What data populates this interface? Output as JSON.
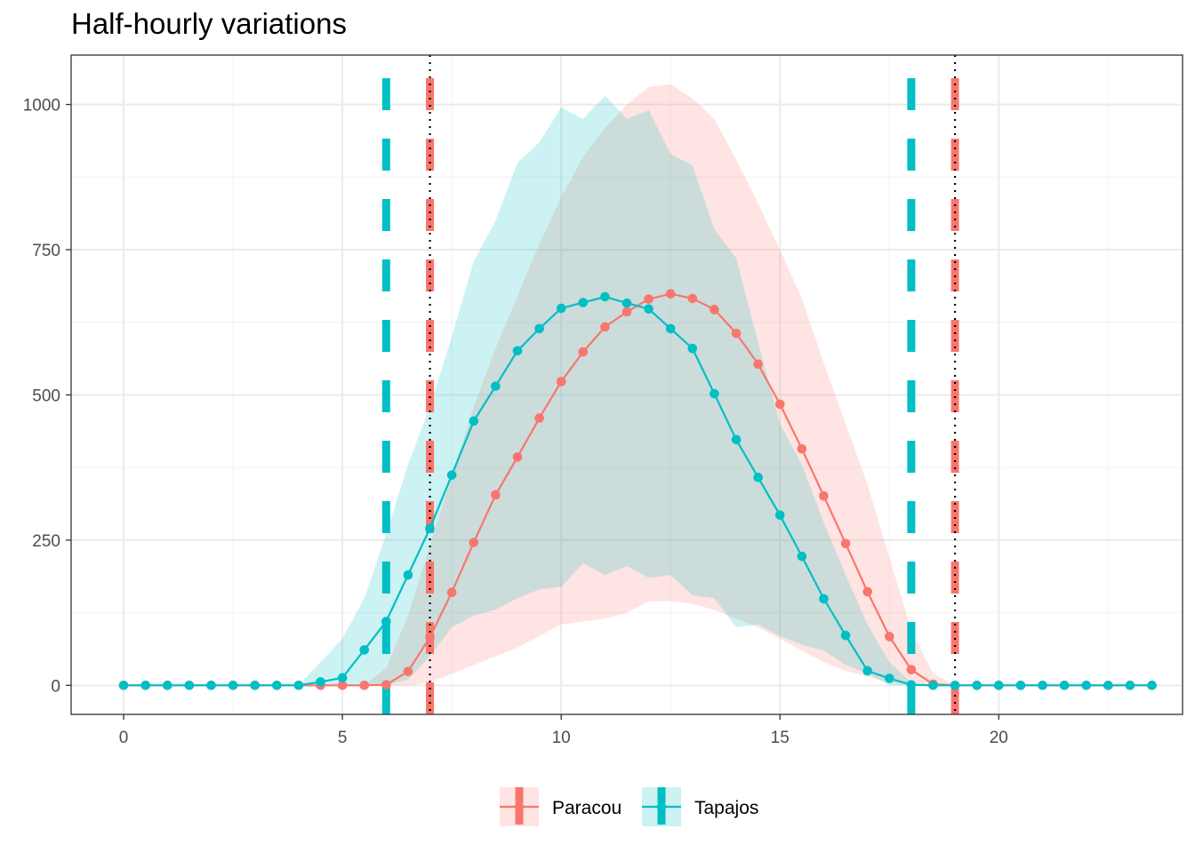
{
  "chart_data": {
    "type": "line",
    "title": "Half-hourly variations",
    "xlabel": "",
    "ylabel": "",
    "xlim": [
      -1.2,
      24.2
    ],
    "ylim": [
      -50,
      1085
    ],
    "x_ticks": [
      0,
      5,
      10,
      15,
      20
    ],
    "x_tick_labels": [
      "0",
      "5",
      "10",
      "15",
      "20"
    ],
    "y_ticks": [
      0,
      250,
      500,
      750,
      1000
    ],
    "y_tick_labels": [
      "0",
      "250",
      "500",
      "750",
      "1000"
    ],
    "grid": true,
    "legend_position": "bottom",
    "series": [
      {
        "name": "Paracou",
        "color": "#F8766D",
        "x": [
          0,
          0.5,
          1,
          1.5,
          2,
          2.5,
          3,
          3.5,
          4,
          4.5,
          5,
          5.5,
          6,
          6.5,
          7,
          7.5,
          8,
          8.5,
          9,
          9.5,
          10,
          10.5,
          11,
          11.5,
          12,
          12.5,
          13,
          13.5,
          14,
          14.5,
          15,
          15.5,
          16,
          16.5,
          17,
          17.5,
          18,
          18.5,
          19,
          19.5,
          20,
          20.5,
          21,
          21.5,
          22,
          22.5,
          23,
          23.5
        ],
        "values": [
          0,
          0,
          0,
          0,
          0,
          0,
          0,
          0,
          0,
          0,
          0,
          0,
          1,
          24,
          83,
          160,
          246,
          328,
          393,
          460,
          523,
          574,
          617,
          643,
          665,
          674,
          666,
          647,
          606,
          553,
          484,
          407,
          326,
          244,
          161,
          84,
          27,
          2,
          0,
          0,
          0,
          0,
          0,
          0,
          0,
          0,
          0,
          0
        ],
        "band_upper": [
          0,
          0,
          0,
          0,
          0,
          0,
          0,
          0,
          0,
          0,
          0,
          0,
          30,
          120,
          240,
          360,
          480,
          580,
          670,
          760,
          840,
          910,
          960,
          1000,
          1030,
          1035,
          1010,
          975,
          905,
          830,
          750,
          665,
          555,
          450,
          345,
          220,
          95,
          20,
          0,
          0,
          0,
          0,
          0,
          0,
          0,
          0,
          0,
          0
        ],
        "band_lower": [
          0,
          0,
          0,
          0,
          0,
          0,
          0,
          0,
          0,
          0,
          0,
          0,
          0,
          0,
          5,
          20,
          35,
          50,
          65,
          85,
          105,
          110,
          115,
          125,
          145,
          145,
          140,
          130,
          115,
          100,
          80,
          60,
          40,
          25,
          15,
          5,
          0,
          0,
          0,
          0,
          0,
          0,
          0,
          0,
          0,
          0,
          0,
          0
        ],
        "vlines": [
          7,
          19
        ],
        "vline_style": "dashed"
      },
      {
        "name": "Tapajos",
        "color": "#00BFC4",
        "x": [
          0,
          0.5,
          1,
          1.5,
          2,
          2.5,
          3,
          3.5,
          4,
          4.5,
          5,
          5.5,
          6,
          6.5,
          7,
          7.5,
          8,
          8.5,
          9,
          9.5,
          10,
          10.5,
          11,
          11.5,
          12,
          12.5,
          13,
          13.5,
          14,
          14.5,
          15,
          15.5,
          16,
          16.5,
          17,
          17.5,
          18,
          18.5,
          19,
          19.5,
          20,
          20.5,
          21,
          21.5,
          22,
          22.5,
          23,
          23.5
        ],
        "values": [
          0,
          0,
          0,
          0,
          0,
          0,
          0,
          0,
          0,
          6,
          13,
          61,
          110,
          190,
          270,
          362,
          455,
          515,
          576,
          614,
          649,
          659,
          669,
          658,
          648,
          614,
          580,
          502,
          423,
          358,
          293,
          222,
          149,
          86,
          25,
          12,
          1,
          0,
          0,
          0,
          0,
          0,
          0,
          0,
          0,
          0,
          0,
          0
        ],
        "band_upper": [
          0,
          0,
          0,
          0,
          0,
          0,
          0,
          0,
          0,
          40,
          80,
          150,
          260,
          380,
          480,
          600,
          730,
          800,
          900,
          935,
          995,
          975,
          1015,
          975,
          990,
          915,
          895,
          785,
          735,
          590,
          450,
          380,
          280,
          190,
          105,
          40,
          5,
          0,
          0,
          0,
          0,
          0,
          0,
          0,
          0,
          0,
          0,
          0
        ],
        "band_lower": [
          0,
          0,
          0,
          0,
          0,
          0,
          0,
          0,
          0,
          0,
          0,
          0,
          0,
          10,
          50,
          100,
          120,
          130,
          150,
          165,
          170,
          210,
          190,
          205,
          185,
          190,
          155,
          150,
          100,
          105,
          85,
          70,
          60,
          35,
          20,
          0,
          0,
          0,
          0,
          0,
          0,
          0,
          0,
          0,
          0,
          0,
          0,
          0
        ],
        "vlines": [
          6,
          18
        ],
        "vline_style": "dashed"
      }
    ],
    "reference_lines": [
      7,
      19
    ],
    "reference_line_style": "dotted",
    "reference_line_color": "#000000"
  }
}
